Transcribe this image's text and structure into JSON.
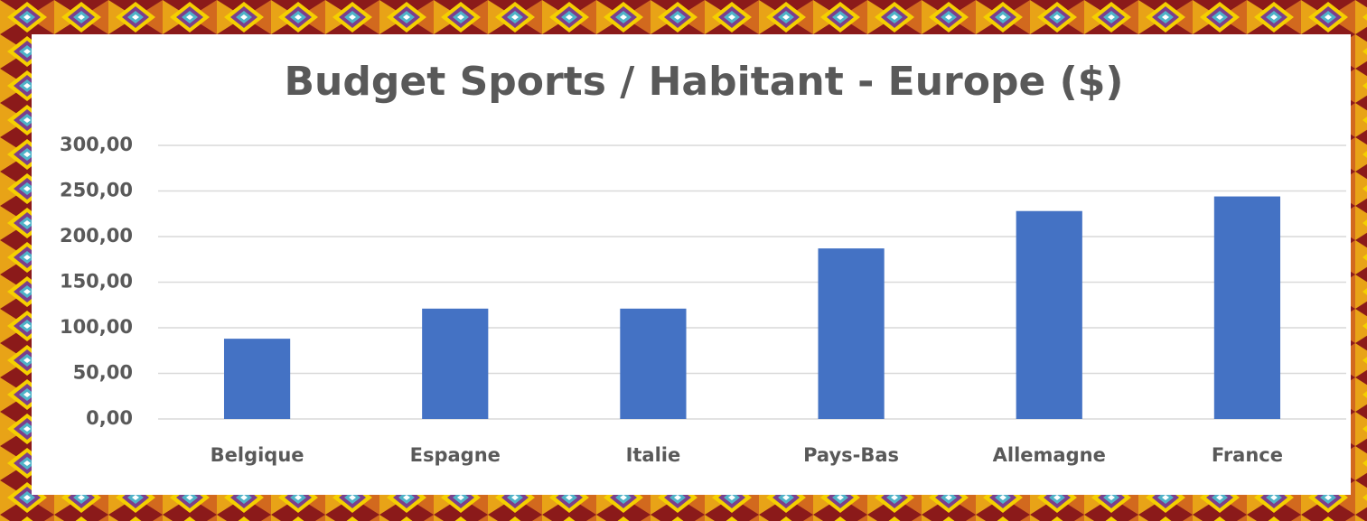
{
  "chart_data": {
    "type": "bar",
    "title": "Budget Sports / Habitant - Europe ($)",
    "categories": [
      "Belgique",
      "Espagne",
      "Italie",
      "Pays-Bas",
      "Allemagne",
      "France"
    ],
    "values": [
      88,
      121,
      121,
      187,
      228,
      244
    ],
    "color": "#4472c4",
    "ylim": [
      0,
      300
    ],
    "yticks": [
      {
        "value": 0,
        "label": "0,00"
      },
      {
        "value": 50,
        "label": "50,00"
      },
      {
        "value": 100,
        "label": "100,00"
      },
      {
        "value": 150,
        "label": "150,00"
      },
      {
        "value": 200,
        "label": "200,00"
      },
      {
        "value": 250,
        "label": "250,00"
      },
      {
        "value": 300,
        "label": "300,00"
      }
    ],
    "grid": true
  }
}
